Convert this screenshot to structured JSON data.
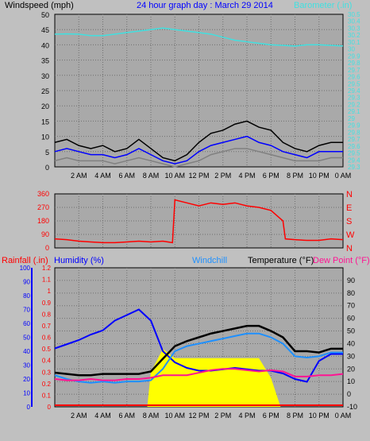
{
  "header": {
    "windspeed_label": "Windspeed (mph)",
    "title": "24 hour graph day : March 29 2014",
    "barometer_label": "Barometer (.in)"
  },
  "colors": {
    "background": "#c0c0c0",
    "plot_bg": "#a9a9a9",
    "grid": "#707070",
    "barometer": "#40e0e0",
    "wind_gust": "#000000",
    "wind_speed": "#0000ff",
    "wind_avg": "#808080",
    "direction": "#ff0000",
    "rain_fill": "#ffff00",
    "humidity": "#0000ff",
    "windchill": "#1e90ff",
    "temperature": "#000000",
    "dewpoint": "#ff1493",
    "rain_axis": "#ff0000"
  },
  "lower_header": {
    "rainfall_label": "Rainfall (.in)",
    "humidity_label": "Humidity (%)",
    "windchill_label": "Windchill",
    "temperature_label": "Temperature (°F)",
    "dewpoint_label": "Dew Point (°F)"
  },
  "time_ticks": [
    "2 AM",
    "4 AM",
    "6 AM",
    "8 AM",
    "10 AM",
    "12 PM",
    "2 PM",
    "4 PM",
    "6 PM",
    "8 PM",
    "10 PM",
    "0 AM"
  ],
  "chart_data": [
    {
      "type": "line",
      "name": "wind-barometer",
      "x_hours": [
        0,
        1,
        2,
        3,
        4,
        5,
        6,
        7,
        8,
        9,
        10,
        11,
        12,
        13,
        14,
        15,
        16,
        17,
        18,
        19,
        20,
        21,
        22,
        23,
        24
      ],
      "ylim": [
        0,
        50
      ],
      "y_ticks": [
        0,
        5,
        10,
        15,
        20,
        25,
        30,
        35,
        40,
        45,
        50
      ],
      "baro_ticks": [
        "29.3",
        "29.4",
        "29.5",
        "29.6",
        "29.7",
        "29.8",
        "29.9",
        "29",
        "29.1",
        "29.2",
        "29.3",
        "29.4",
        "29.5",
        "29.6",
        "29.7",
        "29.8",
        "29.9",
        "30",
        "30.1",
        "30.2",
        "30.3",
        "30.4",
        "30.5"
      ],
      "series": [
        {
          "key": "gust",
          "values": [
            8,
            9,
            7,
            6,
            7,
            5,
            6,
            9,
            6,
            3,
            2,
            4,
            8,
            11,
            12,
            14,
            15,
            13,
            12,
            8,
            6,
            5,
            7,
            8,
            8
          ]
        },
        {
          "key": "speed",
          "values": [
            5,
            6,
            5,
            4,
            4,
            3,
            4,
            6,
            4,
            2,
            1,
            2,
            5,
            7,
            8,
            9,
            10,
            8,
            7,
            5,
            4,
            3,
            5,
            5,
            5
          ]
        },
        {
          "key": "avg",
          "values": [
            2,
            3,
            2,
            2,
            2,
            1,
            2,
            3,
            2,
            1,
            0,
            1,
            2,
            4,
            5,
            6,
            6,
            5,
            4,
            3,
            2,
            2,
            2,
            3,
            3
          ]
        },
        {
          "key": "barometer",
          "values": [
            43.5,
            43.6,
            43.5,
            43,
            43,
            43.5,
            44,
            44.5,
            45,
            45.5,
            45,
            44.5,
            44,
            43.5,
            42.5,
            41.5,
            41,
            40.5,
            40,
            39.8,
            39.6,
            40,
            40,
            39.8,
            39.6
          ]
        }
      ]
    },
    {
      "type": "scatter",
      "name": "wind-direction",
      "ylim": [
        0,
        360
      ],
      "y_ticks": [
        "0",
        "90",
        "180",
        "270",
        "360"
      ],
      "compass": [
        "N",
        "W",
        "S",
        "E",
        "N"
      ],
      "x_hours": [
        0,
        1,
        2,
        3,
        4,
        5,
        6,
        7,
        8,
        9,
        9.8,
        10,
        11,
        12,
        13,
        14,
        15,
        16,
        17,
        18,
        19,
        19.2,
        20,
        21,
        22,
        23,
        24
      ],
      "values": [
        60,
        55,
        45,
        40,
        35,
        35,
        40,
        45,
        40,
        45,
        35,
        320,
        300,
        280,
        300,
        290,
        300,
        280,
        270,
        250,
        180,
        60,
        55,
        50,
        50,
        60,
        55
      ]
    },
    {
      "type": "line",
      "name": "temp-humidity-rain",
      "x_hours": [
        0,
        1,
        2,
        3,
        4,
        5,
        6,
        7,
        8,
        9,
        10,
        11,
        12,
        13,
        14,
        15,
        16,
        17,
        18,
        19,
        20,
        21,
        22,
        23,
        24
      ],
      "left_rain_ticks": [
        "0",
        "0.1",
        "0.2",
        "0.3",
        "0.4",
        "0.5",
        "0.6",
        "0.7",
        "0.8",
        "0.9",
        "1",
        "1.1",
        "1.2"
      ],
      "left_humidity_ticks": [
        "0",
        "10",
        "20",
        "30",
        "40",
        "50",
        "60",
        "70",
        "80",
        "90",
        "100"
      ],
      "right_temp_ticks": [
        "-10",
        "0",
        "10",
        "20",
        "30",
        "40",
        "50",
        "60",
        "70",
        "80",
        "90"
      ],
      "temp_ylim": [
        -10,
        100
      ],
      "series": [
        {
          "key": "humidity",
          "values": [
            42,
            45,
            48,
            52,
            55,
            62,
            66,
            70,
            62,
            40,
            32,
            28,
            26,
            26,
            27,
            28,
            27,
            26,
            26,
            24,
            20,
            18,
            33,
            38,
            38
          ]
        },
        {
          "key": "temperature",
          "values": [
            17,
            16,
            15,
            15,
            16,
            16,
            16,
            16,
            18,
            28,
            38,
            42,
            45,
            48,
            50,
            52,
            54,
            54,
            50,
            45,
            34,
            34,
            33,
            36,
            36
          ]
        },
        {
          "key": "windchill",
          "values": [
            15,
            12,
            10,
            9,
            10,
            9,
            10,
            10,
            11,
            20,
            34,
            38,
            40,
            42,
            44,
            46,
            48,
            48,
            45,
            40,
            30,
            29,
            30,
            33,
            33
          ]
        },
        {
          "key": "dewpoint",
          "values": [
            12,
            11,
            11,
            12,
            11,
            11,
            12,
            12,
            13,
            15,
            15,
            15,
            17,
            19,
            20,
            20,
            19,
            18,
            19,
            18,
            14,
            14,
            15,
            15,
            16
          ]
        },
        {
          "key": "rain",
          "x_start": 7.7,
          "x_end": 18.8,
          "values": [
            0,
            0,
            0,
            0,
            0,
            0,
            0,
            0,
            0.3,
            0.5,
            0.42,
            0.42,
            0.42,
            0.42,
            0.42,
            0.42,
            0.42,
            0.42,
            0.25,
            0,
            0,
            0,
            0,
            0,
            0
          ]
        }
      ]
    }
  ]
}
